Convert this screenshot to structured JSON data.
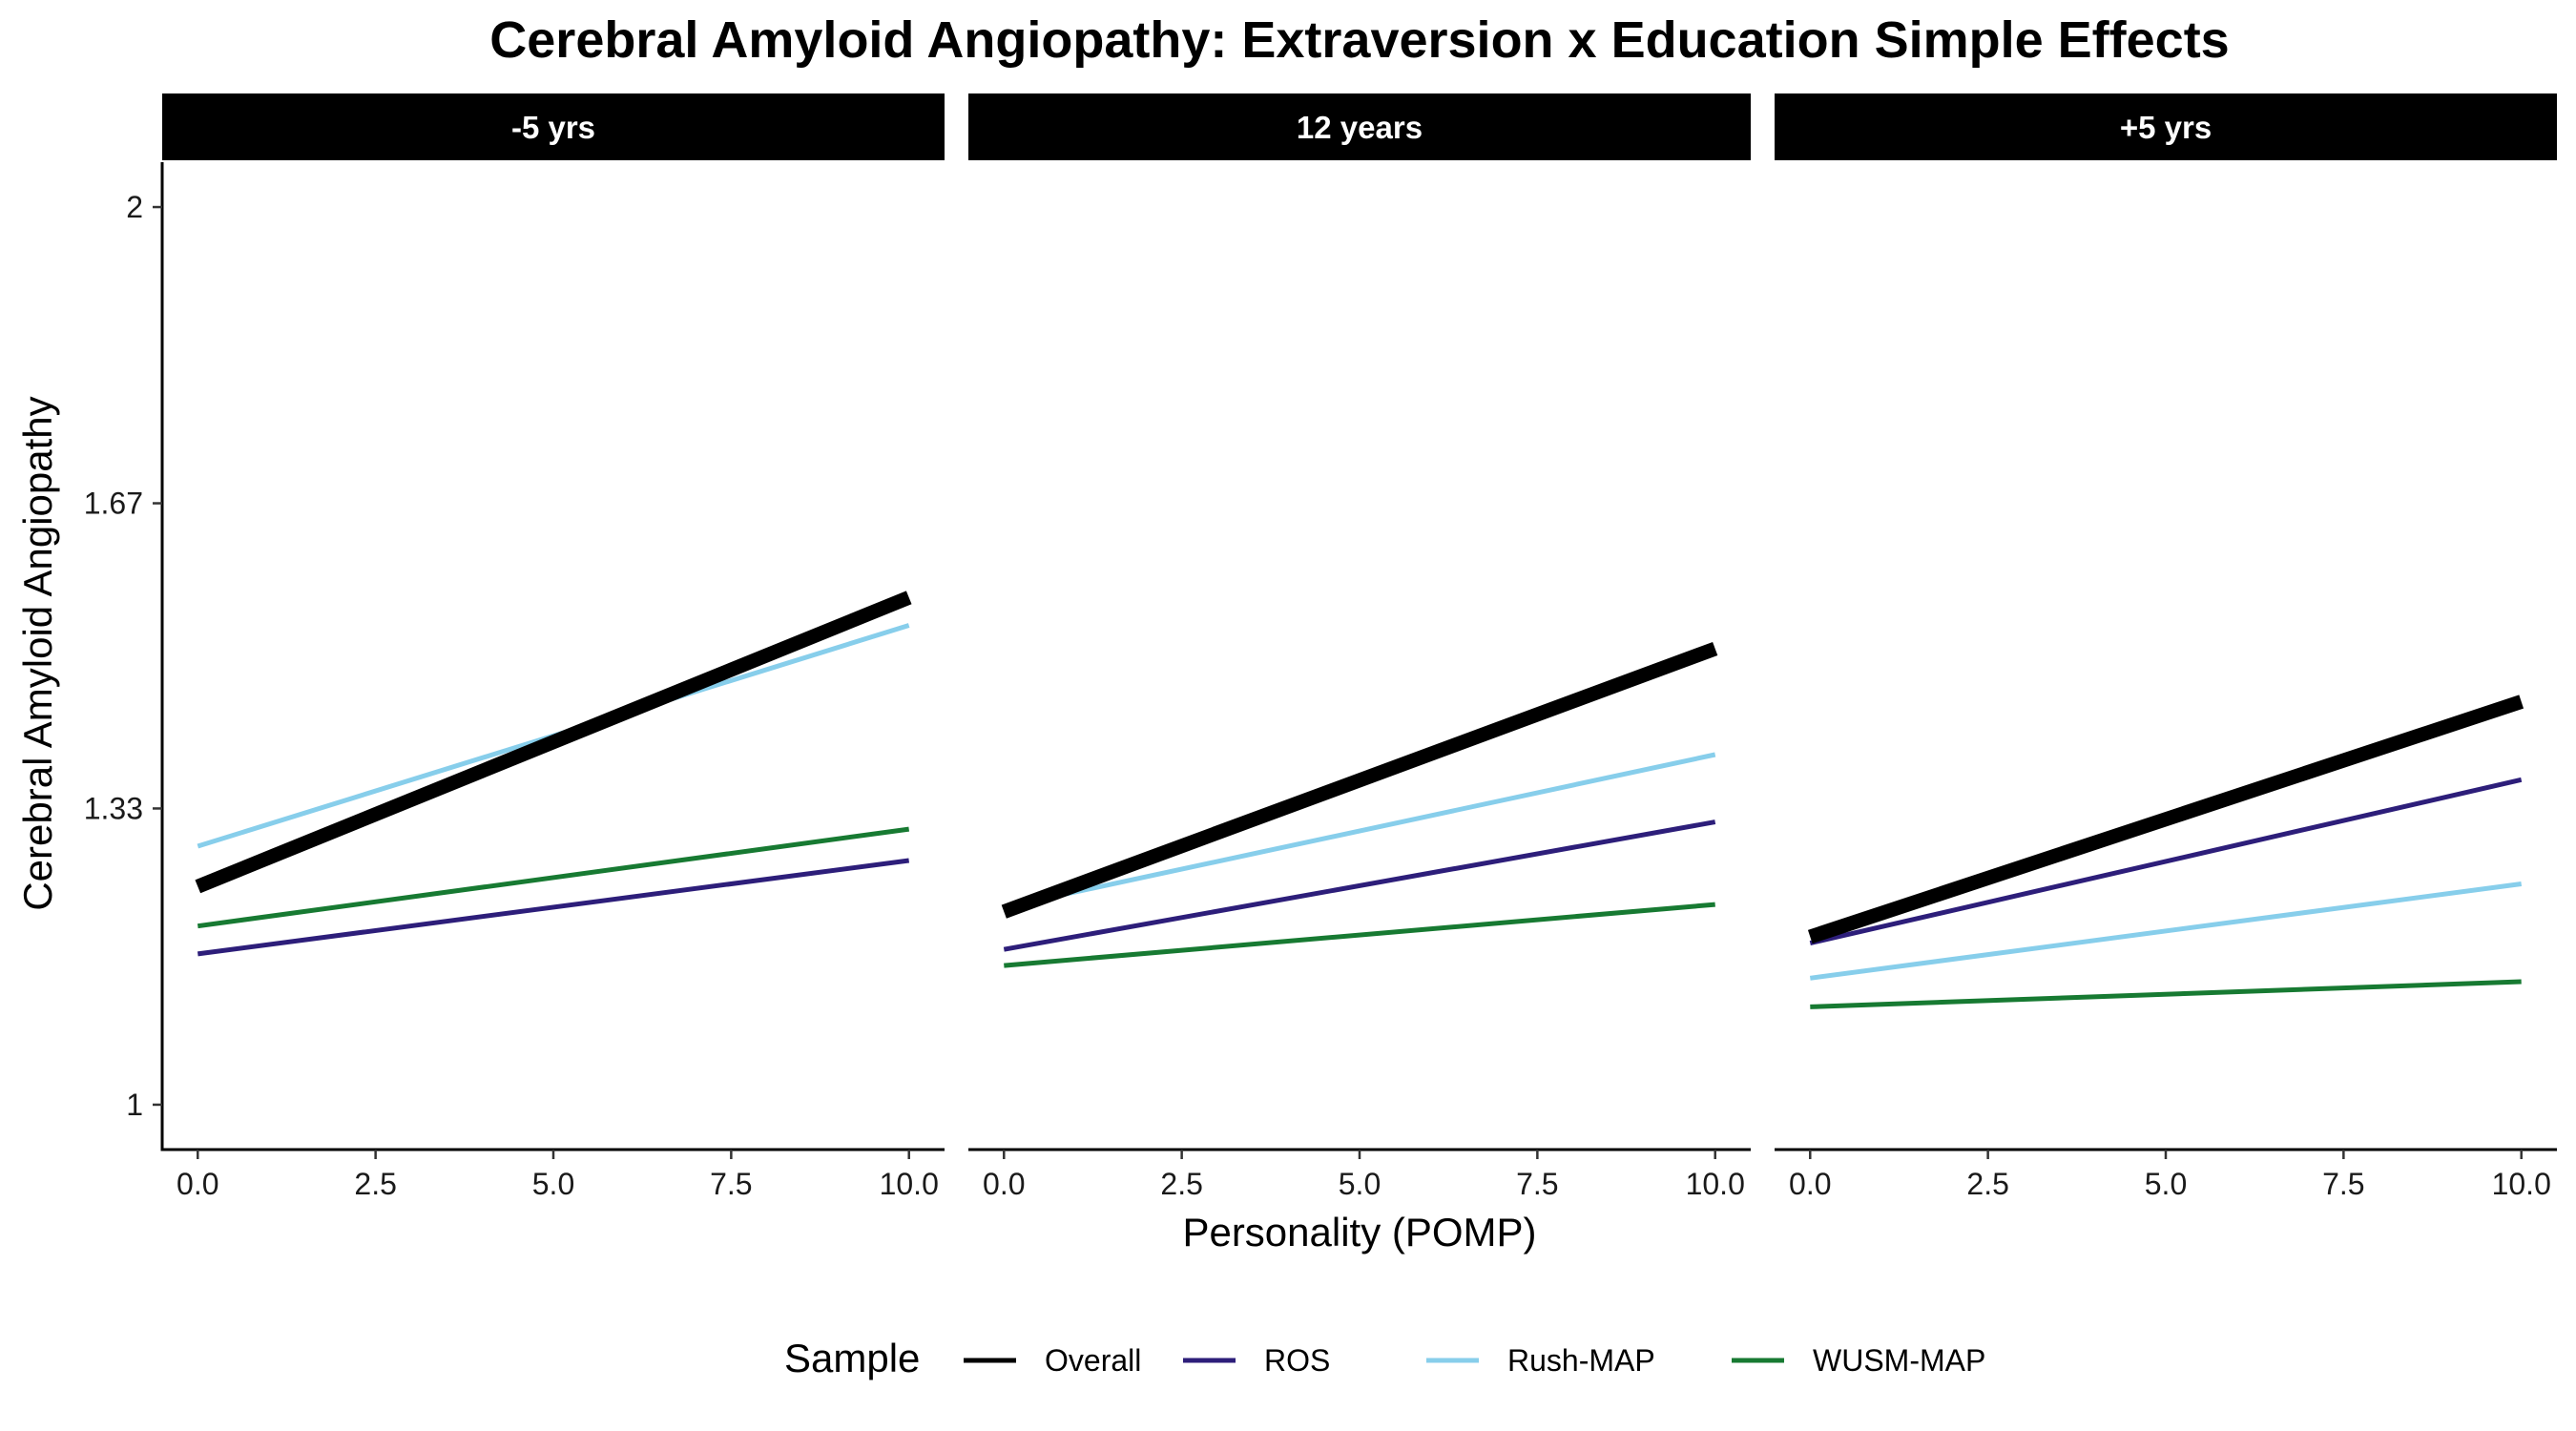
{
  "chart_data": {
    "type": "line",
    "title": "Cerebral Amyloid Angiopathy: Extraversion x Education Simple Effects",
    "xlabel": "Personality (POMP)",
    "ylabel": "Cerebral Amyloid Angiopathy",
    "xlim": [
      -0.5,
      10.5
    ],
    "ylim": [
      0.95,
      2.05
    ],
    "x_ticks": [
      "0.0",
      "2.5",
      "5.0",
      "7.5",
      "10.0"
    ],
    "x_tick_values": [
      0,
      2.5,
      5,
      7.5,
      10
    ],
    "y_ticks": [
      "1",
      "1.33",
      "1.67",
      "2"
    ],
    "y_tick_values": [
      1,
      1.33,
      1.67,
      2
    ],
    "grid": false,
    "legend": {
      "title": "Sample",
      "position": "bottom",
      "entries": [
        "Overall",
        "ROS",
        "Rush-MAP",
        "WUSM-MAP"
      ]
    },
    "series_colors": {
      "Overall": "#000000",
      "ROS": "#2d1e7a",
      "Rush-MAP": "#87ceeb",
      "WUSM-MAP": "#177a32"
    },
    "panels": [
      {
        "label": "-5 yrs",
        "series": [
          {
            "name": "Overall",
            "x": [
              0,
              10
            ],
            "y": [
              1.243,
              1.565
            ]
          },
          {
            "name": "ROS",
            "x": [
              0,
              10
            ],
            "y": [
              1.168,
              1.272
            ]
          },
          {
            "name": "Rush-MAP",
            "x": [
              0,
              10
            ],
            "y": [
              1.288,
              1.534
            ]
          },
          {
            "name": "WUSM-MAP",
            "x": [
              0,
              10
            ],
            "y": [
              1.199,
              1.307
            ]
          }
        ]
      },
      {
        "label": "12 years",
        "series": [
          {
            "name": "Overall",
            "x": [
              0,
              10
            ],
            "y": [
              1.215,
              1.508
            ]
          },
          {
            "name": "ROS",
            "x": [
              0,
              10
            ],
            "y": [
              1.173,
              1.315
            ]
          },
          {
            "name": "Rush-MAP",
            "x": [
              0,
              10
            ],
            "y": [
              1.22,
              1.39
            ]
          },
          {
            "name": "WUSM-MAP",
            "x": [
              0,
              10
            ],
            "y": [
              1.155,
              1.223
            ]
          }
        ]
      },
      {
        "label": "+5 yrs",
        "series": [
          {
            "name": "Overall",
            "x": [
              0,
              10
            ],
            "y": [
              1.187,
              1.449
            ]
          },
          {
            "name": "ROS",
            "x": [
              0,
              10
            ],
            "y": [
              1.18,
              1.362
            ]
          },
          {
            "name": "Rush-MAP",
            "x": [
              0,
              10
            ],
            "y": [
              1.141,
              1.246
            ]
          },
          {
            "name": "WUSM-MAP",
            "x": [
              0,
              10
            ],
            "y": [
              1.109,
              1.137
            ]
          }
        ]
      }
    ]
  }
}
